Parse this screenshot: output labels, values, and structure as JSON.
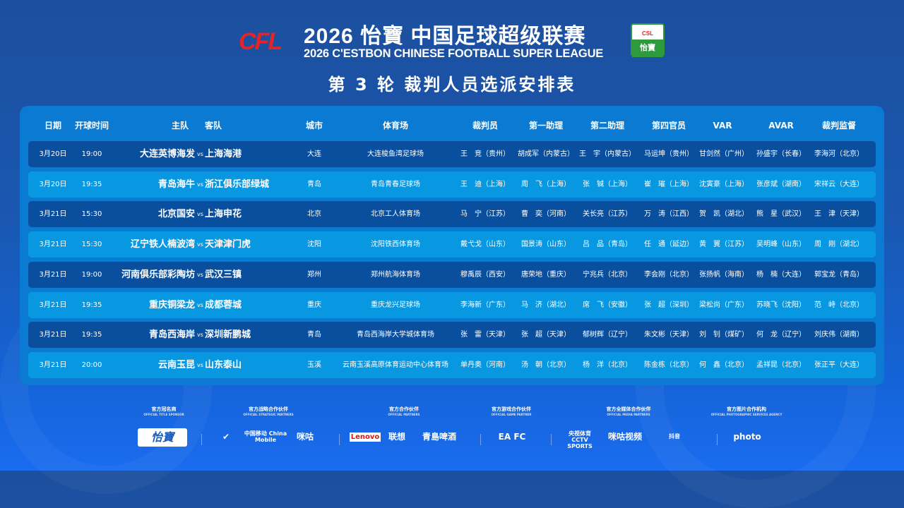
{
  "header": {
    "logo_text": "CFL",
    "title": "2026 怡寶 中国足球超级联赛",
    "subtitle": "2026 C'ESTBON CHINESE FOOTBALL SUPER LEAGUE",
    "round_title": "第 3 轮 裁判人员选派安排表",
    "badge_top": "CSL",
    "badge_text": "怡寶"
  },
  "colors": {
    "row_dark": "#0a4f9e",
    "row_light": "#0898e2",
    "panel": "#0a7ad2",
    "logo_red": "#e32528"
  },
  "table": {
    "columns": {
      "date": "日期",
      "time": "开球时间",
      "home": "主队",
      "away": "客队",
      "city": "城市",
      "stadium": "体育场",
      "referee": "裁判员",
      "ar1": "第一助理",
      "ar2": "第二助理",
      "fourth": "第四官员",
      "var": "VAR",
      "avar": "AVAR",
      "supervisor": "裁判监督"
    },
    "vs": "vs",
    "rows": [
      {
        "date": "3月20日",
        "time": "19:00",
        "home": "大连英博海发",
        "away": "上海海港",
        "city": "大连",
        "stadium": "大连梭鱼湾足球场",
        "referee": "王　竞（贵州）",
        "ar1": "胡成军（内蒙古）",
        "ar2": "王　宇（内蒙古）",
        "fourth": "马运坤（贵州）",
        "var": "甘剑然（广州）",
        "avar": "孙盛宇（长春）",
        "supervisor": "李海河（北京）"
      },
      {
        "date": "3月20日",
        "time": "19:35",
        "home": "青岛海牛",
        "away": "浙江俱乐部绿城",
        "city": "青岛",
        "stadium": "青岛青春足球场",
        "referee": "王　迪（上海）",
        "ar1": "周　飞（上海）",
        "ar2": "张　铖（上海）",
        "fourth": "崔　璀（上海）",
        "var": "沈寅豪（上海）",
        "avar": "张彦斌（湖南）",
        "supervisor": "宋祥云（大连）"
      },
      {
        "date": "3月21日",
        "time": "15:30",
        "home": "北京国安",
        "away": "上海申花",
        "city": "北京",
        "stadium": "北京工人体育场",
        "referee": "马　宁（江苏）",
        "ar1": "曹　奕（河南）",
        "ar2": "关长亮（江苏）",
        "fourth": "万　涛（江西）",
        "var": "贺　凯（湖北）",
        "avar": "熊　星（武汉）",
        "supervisor": "王　津（天津）"
      },
      {
        "date": "3月21日",
        "time": "15:30",
        "home": "辽宁铁人楠波湾",
        "away": "天津津门虎",
        "city": "沈阳",
        "stadium": "沈阳铁西体育场",
        "referee": "戴弋戈（山东）",
        "ar1": "国景涛（山东）",
        "ar2": "吕　品（青岛）",
        "fourth": "任　通（延边）",
        "var": "黄　翼（江苏）",
        "avar": "吴明峰（山东）",
        "supervisor": "周　刚（湖北）"
      },
      {
        "date": "3月21日",
        "time": "19:00",
        "home": "河南俱乐部彩陶坊",
        "away": "武汉三镇",
        "city": "郑州",
        "stadium": "郑州航海体育场",
        "referee": "穆禹辰（西安）",
        "ar1": "唐荣地（重庆）",
        "ar2": "宁兆兵（北京）",
        "fourth": "李会刚（北京）",
        "var": "张扬帆（海南）",
        "avar": "杨　楠（大连）",
        "supervisor": "郭宝龙（青岛）"
      },
      {
        "date": "3月21日",
        "time": "19:35",
        "home": "重庆铜梁龙",
        "away": "成都蓉城",
        "city": "重庆",
        "stadium": "重庆龙兴足球场",
        "referee": "李海新（广东）",
        "ar1": "马　济（湖北）",
        "ar2": "席　飞（安徽）",
        "fourth": "张　超（深圳）",
        "var": "梁松尚（广东）",
        "avar": "苏晓飞（沈阳）",
        "supervisor": "范　峙（北京）"
      },
      {
        "date": "3月21日",
        "time": "19:35",
        "home": "青岛西海岸",
        "away": "深圳新鹏城",
        "city": "青岛",
        "stadium": "青岛西海岸大学城体育场",
        "referee": "张　雷（天津）",
        "ar1": "张　超（天津）",
        "ar2": "郁树辉（辽宁）",
        "fourth": "朱文彬（天津）",
        "var": "刘　钊（煤矿）",
        "avar": "何　龙（辽宁）",
        "supervisor": "刘庆伟（湖南）"
      },
      {
        "date": "3月21日",
        "time": "20:00",
        "home": "云南玉昆",
        "away": "山东泰山",
        "city": "玉溪",
        "stadium": "云南玉溪高原体育运动中心体育场",
        "referee": "单丹奥（河南）",
        "ar1": "汤　朝（北京）",
        "ar2": "杨　洋（北京）",
        "fourth": "陈金栋（北京）",
        "var": "何　鑫（北京）",
        "avar": "孟祥昆（北京）",
        "supervisor": "张正平（大连）"
      }
    ]
  },
  "sponsors": {
    "groups": [
      {
        "cn": "官方冠名商",
        "en": "OFFICIAL TITLE SPONSOR"
      },
      {
        "cn": "官方战略合作伙伴",
        "en": "OFFICIAL STRATEGIC PARTNERS"
      },
      {
        "cn": "官方合作伙伴",
        "en": "OFFICIAL PARTNERS"
      },
      {
        "cn": "官方游戏合作伙伴",
        "en": "OFFICIAL GAME PARTNER"
      },
      {
        "cn": "官方全媒体合作伙伴",
        "en": "OFFICIAL MEDIA PARTNERS"
      },
      {
        "cn": "官方图片合作机构",
        "en": "OFFICIAL PHOTOGRAPHIC SERVICES AGENCY"
      }
    ],
    "logos": [
      "怡寶",
      "✔",
      "中国移动 China Mobile",
      "咪咕",
      "Lenovo",
      "联想",
      "青島啤酒",
      "EA FC",
      "央视体育 CCTV SPORTS",
      "咪咕视频",
      "抖音",
      "photo"
    ]
  }
}
